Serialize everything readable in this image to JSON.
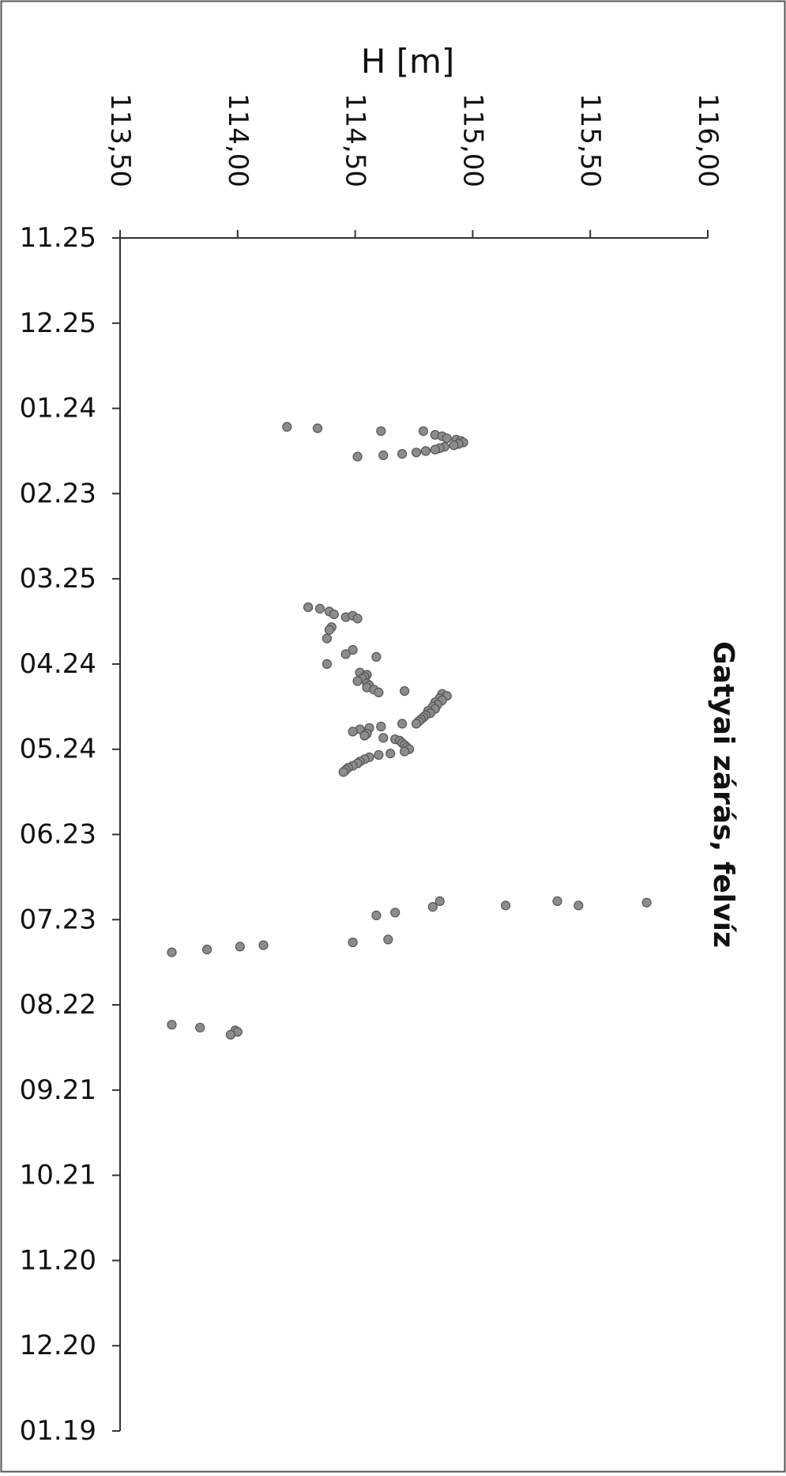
{
  "chart_data": {
    "type": "scatter",
    "orientation": "rotated-90-clockwise",
    "title": "Gatyai zárás, felvíz",
    "ylabel": "H [m]",
    "xlabel": "",
    "ylim": [
      113.5,
      116.0
    ],
    "y_ticks": [
      "113,50",
      "114,00",
      "114,50",
      "115,00",
      "115,50",
      "116,00"
    ],
    "x_ticks": [
      "11.25",
      "12.25",
      "01.24",
      "02.23",
      "03.25",
      "04.24",
      "05.24",
      "06.23",
      "07.23",
      "08.22",
      "09.21",
      "10.21",
      "11.20",
      "12.20",
      "01.19"
    ],
    "x_tick_days": [
      0,
      30,
      60,
      90,
      120,
      150,
      180,
      210,
      240,
      270,
      300,
      330,
      360,
      390,
      420
    ],
    "grid": false,
    "legend": "none",
    "marker_color": "#8c8c8c",
    "points": [
      {
        "x": 66.5,
        "y": 114.21
      },
      {
        "x": 67.0,
        "y": 114.34
      },
      {
        "x": 68.0,
        "y": 114.61
      },
      {
        "x": 68.0,
        "y": 114.79
      },
      {
        "x": 69.3,
        "y": 114.84
      },
      {
        "x": 69.8,
        "y": 114.87
      },
      {
        "x": 70.5,
        "y": 114.89
      },
      {
        "x": 71.0,
        "y": 114.93
      },
      {
        "x": 71.5,
        "y": 114.95
      },
      {
        "x": 72.0,
        "y": 114.96
      },
      {
        "x": 72.5,
        "y": 114.94
      },
      {
        "x": 73.0,
        "y": 114.92
      },
      {
        "x": 73.5,
        "y": 114.88
      },
      {
        "x": 74.0,
        "y": 114.86
      },
      {
        "x": 74.5,
        "y": 114.84
      },
      {
        "x": 75.0,
        "y": 114.8
      },
      {
        "x": 75.5,
        "y": 114.76
      },
      {
        "x": 76.0,
        "y": 114.7
      },
      {
        "x": 76.5,
        "y": 114.62
      },
      {
        "x": 77.0,
        "y": 114.51
      },
      {
        "x": 130.0,
        "y": 114.3
      },
      {
        "x": 130.5,
        "y": 114.35
      },
      {
        "x": 131.5,
        "y": 114.39
      },
      {
        "x": 132.5,
        "y": 114.41
      },
      {
        "x": 133.5,
        "y": 114.46
      },
      {
        "x": 133.0,
        "y": 114.49
      },
      {
        "x": 134.0,
        "y": 114.51
      },
      {
        "x": 137.0,
        "y": 114.4
      },
      {
        "x": 138.0,
        "y": 114.39
      },
      {
        "x": 141.0,
        "y": 114.38
      },
      {
        "x": 145.0,
        "y": 114.49
      },
      {
        "x": 146.5,
        "y": 114.46
      },
      {
        "x": 147.5,
        "y": 114.59
      },
      {
        "x": 150.0,
        "y": 114.38
      },
      {
        "x": 153.0,
        "y": 114.52
      },
      {
        "x": 153.8,
        "y": 114.55
      },
      {
        "x": 154.5,
        "y": 114.54
      },
      {
        "x": 155.2,
        "y": 114.53
      },
      {
        "x": 156.0,
        "y": 114.51
      },
      {
        "x": 156.8,
        "y": 114.55
      },
      {
        "x": 157.5,
        "y": 114.56
      },
      {
        "x": 158.3,
        "y": 114.55
      },
      {
        "x": 159.0,
        "y": 114.58
      },
      {
        "x": 160.0,
        "y": 114.6
      },
      {
        "x": 159.5,
        "y": 114.71
      },
      {
        "x": 160.5,
        "y": 114.87
      },
      {
        "x": 161.2,
        "y": 114.89
      },
      {
        "x": 162.0,
        "y": 114.86
      },
      {
        "x": 162.8,
        "y": 114.87
      },
      {
        "x": 163.5,
        "y": 114.84
      },
      {
        "x": 164.3,
        "y": 114.85
      },
      {
        "x": 165.0,
        "y": 114.83
      },
      {
        "x": 165.8,
        "y": 114.84
      },
      {
        "x": 166.5,
        "y": 114.81
      },
      {
        "x": 167.3,
        "y": 114.82
      },
      {
        "x": 168.0,
        "y": 114.8
      },
      {
        "x": 168.8,
        "y": 114.79
      },
      {
        "x": 169.5,
        "y": 114.78
      },
      {
        "x": 170.2,
        "y": 114.77
      },
      {
        "x": 171.0,
        "y": 114.76
      },
      {
        "x": 171.0,
        "y": 114.7
      },
      {
        "x": 172.0,
        "y": 114.61
      },
      {
        "x": 172.5,
        "y": 114.56
      },
      {
        "x": 173.0,
        "y": 114.52
      },
      {
        "x": 173.8,
        "y": 114.49
      },
      {
        "x": 174.5,
        "y": 114.55
      },
      {
        "x": 175.2,
        "y": 114.54
      },
      {
        "x": 176.0,
        "y": 114.62
      },
      {
        "x": 176.5,
        "y": 114.67
      },
      {
        "x": 177.0,
        "y": 114.69
      },
      {
        "x": 177.8,
        "y": 114.7
      },
      {
        "x": 178.5,
        "y": 114.71
      },
      {
        "x": 179.3,
        "y": 114.72
      },
      {
        "x": 180.0,
        "y": 114.73
      },
      {
        "x": 180.8,
        "y": 114.71
      },
      {
        "x": 181.5,
        "y": 114.65
      },
      {
        "x": 182.0,
        "y": 114.6
      },
      {
        "x": 182.8,
        "y": 114.56
      },
      {
        "x": 183.5,
        "y": 114.54
      },
      {
        "x": 184.3,
        "y": 114.52
      },
      {
        "x": 185.0,
        "y": 114.51
      },
      {
        "x": 185.8,
        "y": 114.49
      },
      {
        "x": 186.5,
        "y": 114.47
      },
      {
        "x": 187.3,
        "y": 114.46
      },
      {
        "x": 188.0,
        "y": 114.45
      },
      {
        "x": 233.5,
        "y": 114.86
      },
      {
        "x": 235.0,
        "y": 115.14
      },
      {
        "x": 233.5,
        "y": 115.36
      },
      {
        "x": 235.0,
        "y": 115.45
      },
      {
        "x": 234.0,
        "y": 115.74
      },
      {
        "x": 235.5,
        "y": 114.83
      },
      {
        "x": 237.5,
        "y": 114.67
      },
      {
        "x": 238.5,
        "y": 114.59
      },
      {
        "x": 248.0,
        "y": 114.49
      },
      {
        "x": 247.0,
        "y": 114.64
      },
      {
        "x": 249.0,
        "y": 114.11
      },
      {
        "x": 249.5,
        "y": 114.01
      },
      {
        "x": 250.5,
        "y": 113.87
      },
      {
        "x": 251.5,
        "y": 113.72
      },
      {
        "x": 277.0,
        "y": 113.72
      },
      {
        "x": 278.0,
        "y": 113.84
      },
      {
        "x": 279.0,
        "y": 113.99
      },
      {
        "x": 279.5,
        "y": 114.0
      },
      {
        "x": 280.5,
        "y": 113.97
      }
    ]
  }
}
